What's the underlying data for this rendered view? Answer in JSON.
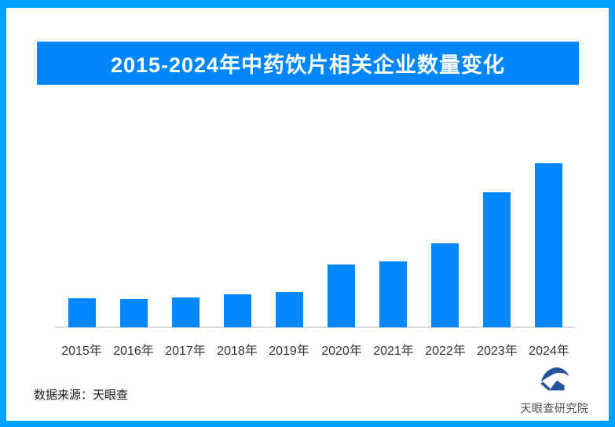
{
  "page": {
    "border_color": "#00a1ff",
    "background": "#ffffff"
  },
  "header": {
    "title": "2015-2024年中药饮片相关企业数量变化",
    "banner_color": "#0086fb",
    "title_color": "#ffffff"
  },
  "chart_data": {
    "type": "bar",
    "title": "2015-2024年中药饮片相关企业数量变化",
    "categories": [
      "2015年",
      "2016年",
      "2017年",
      "2018年",
      "2019年",
      "2020年",
      "2021年",
      "2022年",
      "2023年",
      "2024年"
    ],
    "values": [
      17.7,
      17.1,
      18.3,
      20.2,
      21.5,
      38.1,
      40.3,
      51.2,
      82.3,
      100
    ],
    "value_scale_note": "柱形图无数值标注，数值为相对高度估计（2024年 = 100）",
    "xlabel": "",
    "ylabel": "",
    "y_axis_labeled": false,
    "grid": false,
    "legend": false,
    "bar_color": "#0087ff",
    "axis_line_color": "#d9d9d9",
    "tick_label_color": "#333333"
  },
  "footer": {
    "source_label": "数据来源：天眼查"
  },
  "logo": {
    "text": "天眼查研究院",
    "icon": "tianyancha-eye-logo",
    "mark_color": "#26529e",
    "text_color": "#4d4d4d"
  }
}
